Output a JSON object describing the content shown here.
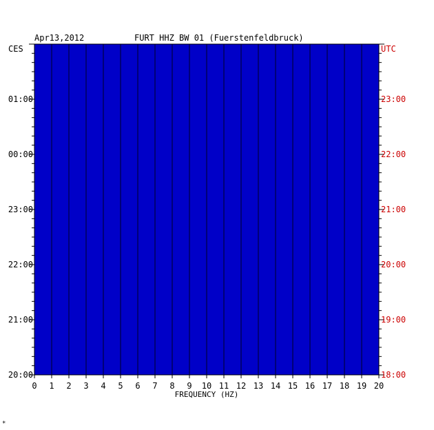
{
  "header": {
    "date": "Apr13,2012",
    "station": "FURT HHZ BW 01 (Fuerstenfeldbruck)"
  },
  "chart_data": {
    "type": "heatmap",
    "title": "FURT HHZ BW 01 (Fuerstenfeldbruck)",
    "xlabel": "FREQUENCY (HZ)",
    "xlim": [
      0,
      20
    ],
    "x_ticks": [
      "0",
      "1",
      "2",
      "3",
      "4",
      "5",
      "6",
      "7",
      "8",
      "9",
      "10",
      "11",
      "12",
      "13",
      "14",
      "15",
      "16",
      "17",
      "18",
      "19",
      "20"
    ],
    "left_axis": {
      "label": "CES",
      "ticks": [
        "01:00",
        "00:00",
        "23:00",
        "22:00",
        "21:00",
        "20:00"
      ],
      "color": "#000000"
    },
    "right_axis": {
      "label": "UTC",
      "ticks": [
        "23:00",
        "22:00",
        "21:00",
        "20:00",
        "19:00",
        "18:00"
      ],
      "color": "#cc0000"
    },
    "time_span_hours": 6,
    "grid": true,
    "colormap": [
      "#000080",
      "#0000ff",
      "#00a0ff",
      "#00ffff",
      "#ffff00",
      "#ff0000"
    ],
    "background_color": "#0000c8"
  },
  "footer_mark": "*"
}
